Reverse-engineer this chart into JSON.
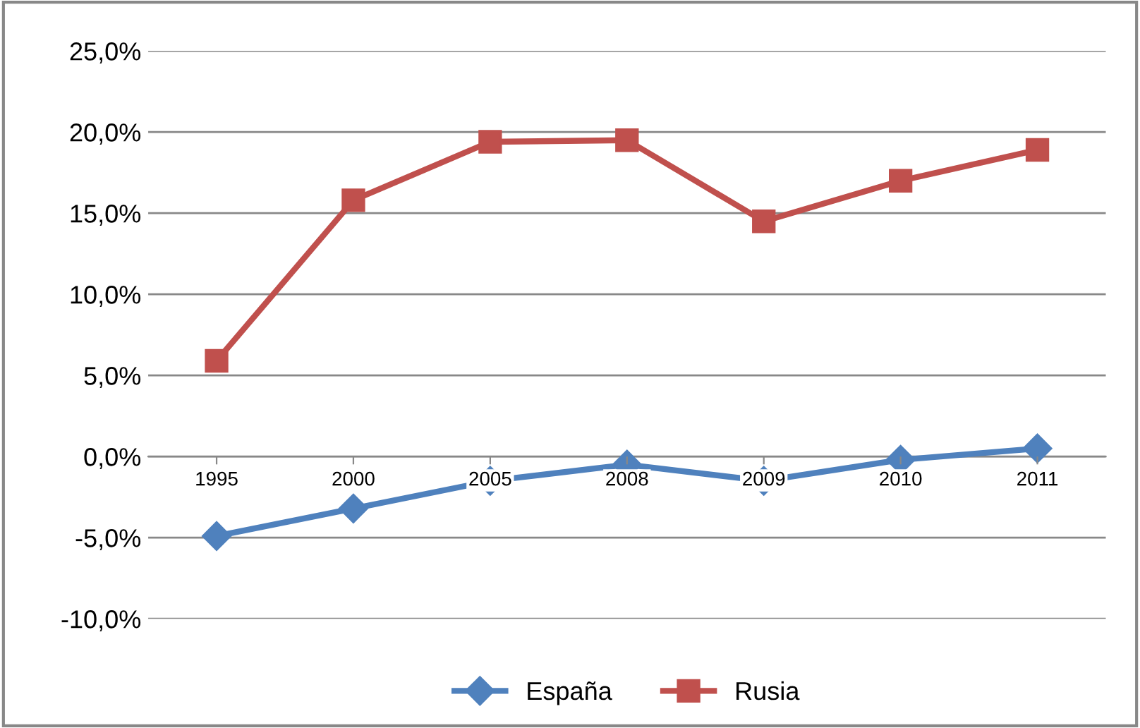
{
  "chart_data": {
    "type": "line",
    "categories": [
      "1995",
      "2000",
      "2005",
      "2008",
      "2009",
      "2010",
      "2011"
    ],
    "series": [
      {
        "name": "España",
        "color": "#4f81bd",
        "marker": "diamond",
        "values": [
          -4.9,
          -3.2,
          -1.5,
          -0.5,
          -1.5,
          -0.2,
          0.5
        ]
      },
      {
        "name": "Rusia",
        "color": "#c0504d",
        "marker": "square",
        "values": [
          5.9,
          15.8,
          19.4,
          19.5,
          14.5,
          17.0,
          18.9
        ]
      }
    ],
    "ylim": [
      -10,
      25
    ],
    "yticks": [
      {
        "value": -10,
        "label": "-10,0%"
      },
      {
        "value": -5,
        "label": "-5,0%"
      },
      {
        "value": 0,
        "label": "0,0%"
      },
      {
        "value": 5,
        "label": "5,0%"
      },
      {
        "value": 10,
        "label": "10,0%"
      },
      {
        "value": 15,
        "label": "15,0%"
      },
      {
        "value": 20,
        "label": "20,0%"
      },
      {
        "value": 25,
        "label": "25,0%"
      }
    ],
    "grid": "y",
    "legend": "bottom",
    "line_style": "solid"
  }
}
